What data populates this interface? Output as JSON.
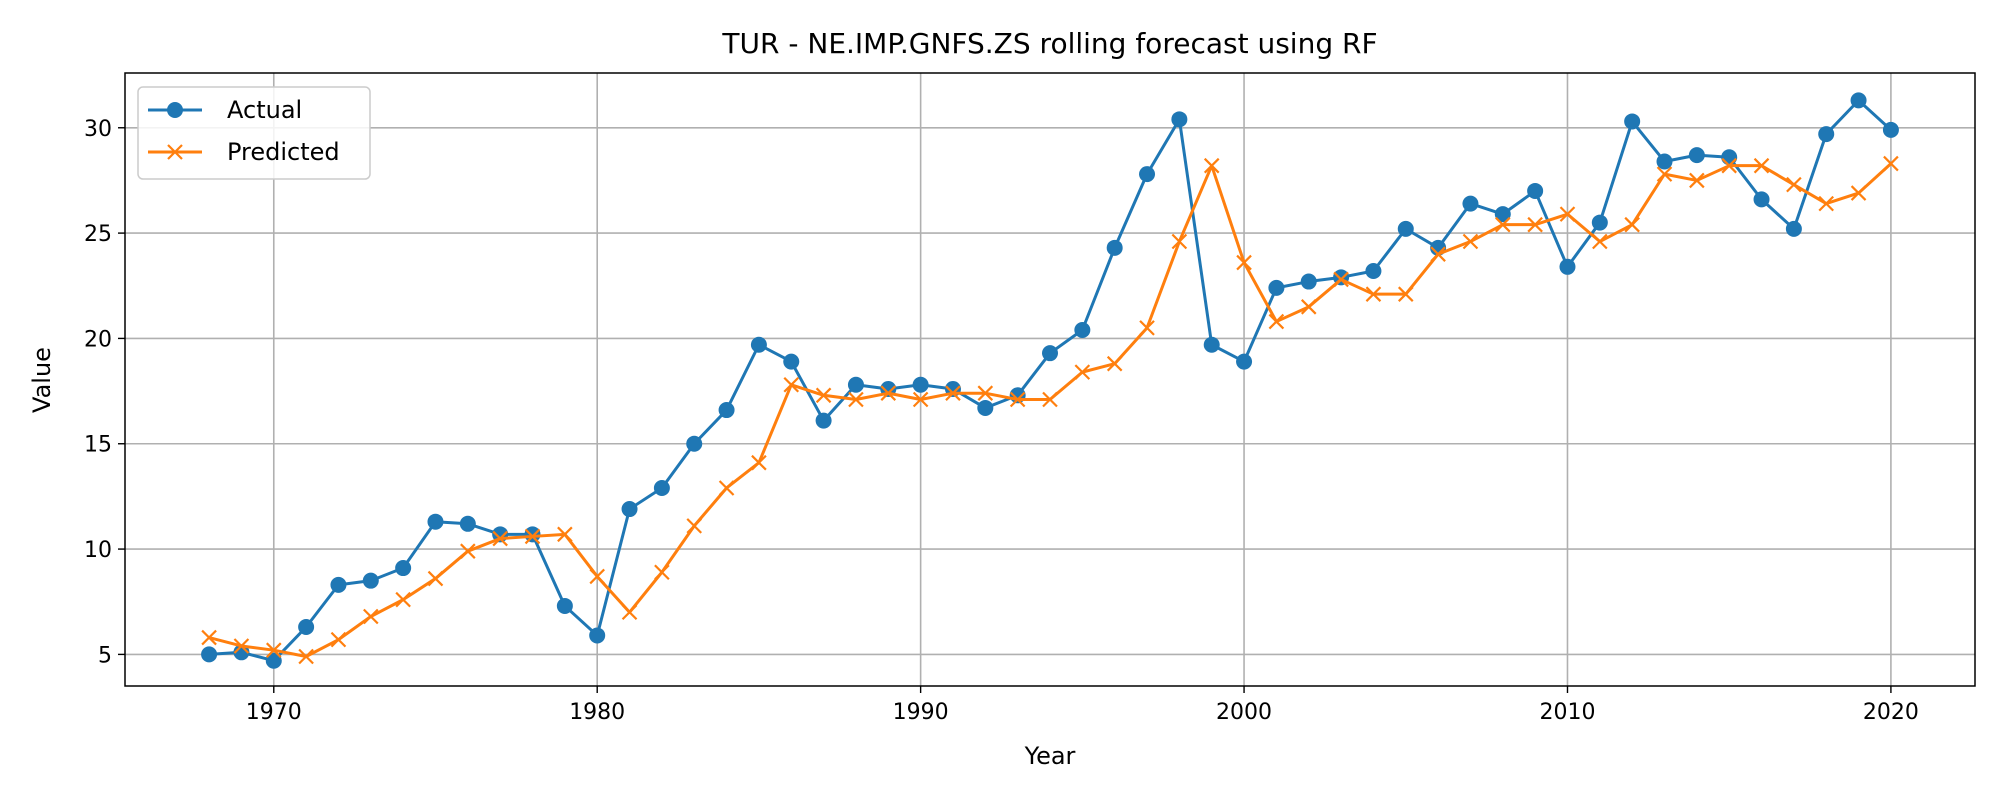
{
  "chart_data": {
    "type": "line",
    "title": "TUR - NE.IMP.GNFS.ZS rolling forecast using RF",
    "xlabel": "Year",
    "ylabel": "Value",
    "xlim": [
      1965.4,
      2022.6
    ],
    "ylim": [
      3.5,
      32.6
    ],
    "xticks": [
      1970,
      1980,
      1990,
      2000,
      2010,
      2020
    ],
    "yticks": [
      5,
      10,
      15,
      20,
      25,
      30
    ],
    "grid": true,
    "legend_position": "top-left",
    "x": [
      1968,
      1969,
      1970,
      1971,
      1972,
      1973,
      1974,
      1975,
      1976,
      1977,
      1978,
      1979,
      1980,
      1981,
      1982,
      1983,
      1984,
      1985,
      1986,
      1987,
      1988,
      1989,
      1990,
      1991,
      1992,
      1993,
      1994,
      1995,
      1996,
      1997,
      1998,
      1999,
      2000,
      2001,
      2002,
      2003,
      2004,
      2005,
      2006,
      2007,
      2008,
      2009,
      2010,
      2011,
      2012,
      2013,
      2014,
      2015,
      2016,
      2017,
      2018,
      2019,
      2020
    ],
    "series": [
      {
        "name": "Actual",
        "color": "#1f77b4",
        "marker": "circle",
        "values": [
          5.0,
          5.1,
          4.7,
          6.3,
          8.3,
          8.5,
          9.1,
          11.3,
          11.2,
          10.7,
          10.7,
          7.3,
          5.9,
          11.9,
          12.9,
          15.0,
          16.6,
          19.7,
          18.9,
          16.1,
          17.8,
          17.6,
          17.8,
          17.6,
          16.7,
          17.3,
          19.3,
          20.4,
          24.3,
          27.8,
          30.4,
          19.7,
          18.9,
          22.4,
          22.7,
          22.9,
          23.2,
          25.2,
          24.3,
          26.4,
          25.9,
          27.0,
          23.4,
          25.5,
          30.3,
          28.4,
          28.7,
          28.6,
          26.6,
          25.2,
          29.7,
          31.3,
          29.9
        ]
      },
      {
        "name": "Predicted",
        "color": "#ff7f0e",
        "marker": "x",
        "values": [
          5.8,
          5.4,
          5.2,
          4.9,
          5.7,
          6.8,
          7.6,
          8.6,
          9.9,
          10.5,
          10.6,
          10.7,
          8.7,
          7.0,
          8.9,
          11.1,
          12.9,
          14.1,
          17.8,
          17.3,
          17.1,
          17.4,
          17.1,
          17.4,
          17.4,
          17.1,
          17.1,
          18.4,
          18.8,
          20.5,
          24.6,
          28.2,
          23.6,
          20.8,
          21.5,
          22.8,
          22.1,
          22.1,
          24.0,
          24.6,
          25.4,
          25.4,
          25.9,
          24.6,
          25.4,
          27.8,
          27.5,
          28.2,
          28.2,
          27.3,
          26.4,
          26.9,
          28.3
        ]
      }
    ]
  }
}
